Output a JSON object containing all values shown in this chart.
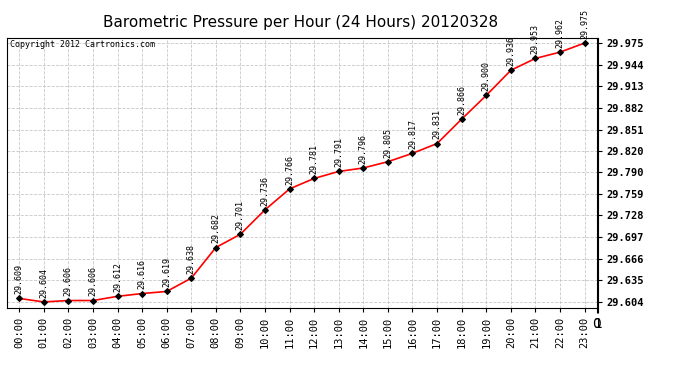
{
  "title": "Barometric Pressure per Hour (24 Hours) 20120328",
  "copyright": "Copyright 2012 Cartronics.com",
  "hours": [
    "00:00",
    "01:00",
    "02:00",
    "03:00",
    "04:00",
    "05:00",
    "06:00",
    "07:00",
    "08:00",
    "09:00",
    "10:00",
    "11:00",
    "12:00",
    "13:00",
    "14:00",
    "15:00",
    "16:00",
    "17:00",
    "18:00",
    "19:00",
    "20:00",
    "21:00",
    "22:00",
    "23:00"
  ],
  "values": [
    29.609,
    29.604,
    29.606,
    29.606,
    29.612,
    29.616,
    29.619,
    29.638,
    29.682,
    29.701,
    29.736,
    29.766,
    29.781,
    29.791,
    29.796,
    29.805,
    29.817,
    29.831,
    29.866,
    29.9,
    29.936,
    29.953,
    29.962,
    29.975
  ],
  "yticks": [
    29.604,
    29.635,
    29.666,
    29.697,
    29.728,
    29.759,
    29.79,
    29.82,
    29.851,
    29.882,
    29.913,
    29.944,
    29.975
  ],
  "ylim_min": 29.596,
  "ylim_max": 29.983,
  "line_color": "#ff0000",
  "marker_color": "#000000",
  "bg_color": "#ffffff",
  "grid_color": "#c8c8c8",
  "title_fontsize": 11,
  "annotation_fontsize": 6.0,
  "axis_fontsize": 7.5,
  "copyright_fontsize": 6.0
}
